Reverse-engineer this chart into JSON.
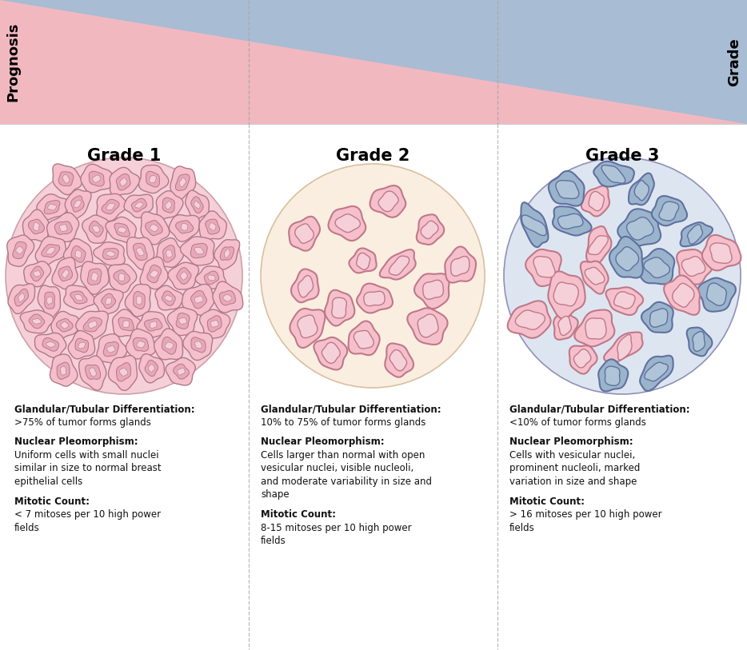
{
  "bg_color": "#ffffff",
  "triangle_pink": "#f2b8c0",
  "triangle_blue": "#a8bcd4",
  "prognosis_label": "Prognosis",
  "grade_label": "Grade",
  "grades": [
    "Grade 1",
    "Grade 2",
    "Grade 3"
  ],
  "divider_color": "#aaaaaa",
  "text_color": "#111111",
  "grade1_text": [
    [
      "Glandular/Tubular Differentiation:",
      true
    ],
    [
      ">75% of tumor forms glands",
      false
    ],
    [
      "",
      false
    ],
    [
      "Nuclear Pleomorphism:",
      true
    ],
    [
      "Uniform cells with small nuclei",
      false
    ],
    [
      "similar in size to normal breast",
      false
    ],
    [
      "epithelial cells",
      false
    ],
    [
      "",
      false
    ],
    [
      "Mitotic Count:",
      true
    ],
    [
      "< 7 mitoses per 10 high power",
      false
    ],
    [
      "fields",
      false
    ]
  ],
  "grade2_text": [
    [
      "Glandular/Tubular Differentiation:",
      true
    ],
    [
      "10% to 75% of tumor forms glands",
      false
    ],
    [
      "",
      false
    ],
    [
      "Nuclear Pleomorphism:",
      true
    ],
    [
      "Cells larger than normal with open",
      false
    ],
    [
      "vesicular nuclei, visible nucleoli,",
      false
    ],
    [
      "and moderate variability in size and",
      false
    ],
    [
      "shape",
      false
    ],
    [
      "",
      false
    ],
    [
      "Mitotic Count:",
      true
    ],
    [
      "8-15 mitoses per 10 high power",
      false
    ],
    [
      "fields",
      false
    ]
  ],
  "grade3_text": [
    [
      "Glandular/Tubular Differentiation:",
      true
    ],
    [
      "<10% of tumor forms glands",
      false
    ],
    [
      "",
      false
    ],
    [
      "Nuclear Pleomorphism:",
      true
    ],
    [
      "Cells with vesicular nuclei,",
      false
    ],
    [
      "prominent nucleoli, marked",
      false
    ],
    [
      "variation in size and shape",
      false
    ],
    [
      "",
      false
    ],
    [
      "Mitotic Count:",
      true
    ],
    [
      "> 16 mitoses per 10 high power",
      false
    ],
    [
      "fields",
      false
    ]
  ]
}
